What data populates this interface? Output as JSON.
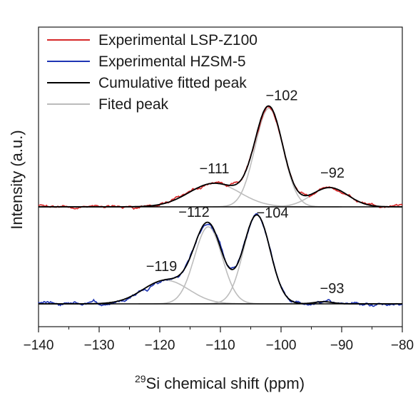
{
  "chart_data": {
    "type": "line",
    "title": "",
    "xlabel_sup": "29",
    "xlabel": "Si chemical shift (ppm)",
    "ylabel": "Intensity (a.u.)",
    "xlim": [
      -140,
      -80
    ],
    "xticks": [
      -140,
      -130,
      -120,
      -110,
      -100,
      -90,
      -80
    ],
    "xtick_labels": [
      "−140",
      "−130",
      "−120",
      "−110",
      "−100",
      "−90",
      "−80"
    ],
    "y_ticks_shown": false,
    "legend_position": "top-left",
    "legend": [
      {
        "label": "Experimental LSP-Z100",
        "color": "#d62728"
      },
      {
        "label": "Experimental HZSM-5",
        "color": "#1f35b4"
      },
      {
        "label": "Cumulative fitted peak",
        "color": "#000000"
      },
      {
        "label": "Fited peak",
        "color": "#bbbbbb"
      }
    ],
    "series": [
      {
        "sample": "LSP-Z100",
        "baseline": 0,
        "experimental_color": "#d62728",
        "fitted_peaks": [
          {
            "center": -111,
            "height": 0.22,
            "width": 4.2,
            "label": "−111"
          },
          {
            "center": -102,
            "height": 0.92,
            "width": 2.3,
            "label": "−102"
          },
          {
            "center": -92,
            "height": 0.18,
            "width": 3.0,
            "label": "−92"
          }
        ]
      },
      {
        "sample": "HZSM-5",
        "baseline": 0,
        "experimental_color": "#1f35b4",
        "fitted_peaks": [
          {
            "center": -119,
            "height": 0.22,
            "width": 3.8,
            "label": "−119"
          },
          {
            "center": -112,
            "height": 0.72,
            "width": 2.3,
            "label": "−112"
          },
          {
            "center": -104,
            "height": 0.83,
            "width": 2.2,
            "label": "−104"
          },
          {
            "center": -93,
            "height": 0.02,
            "width": 1.5,
            "label": "−93"
          }
        ]
      }
    ]
  }
}
